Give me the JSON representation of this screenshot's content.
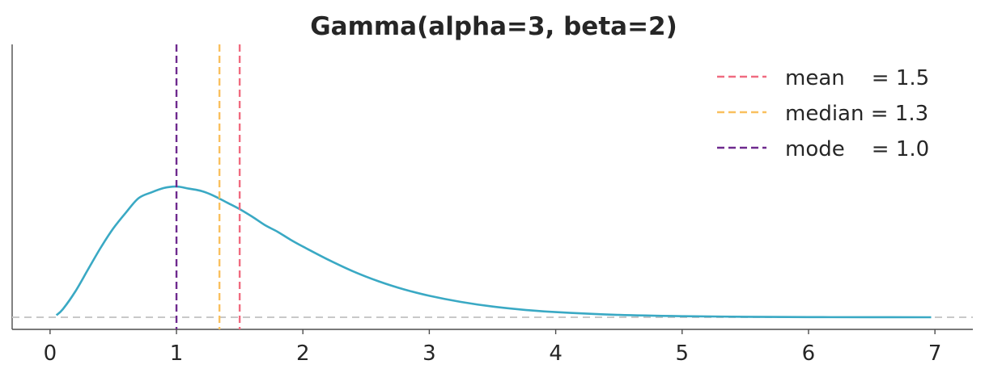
{
  "chart_data": {
    "type": "line",
    "title": "Gamma(alpha=3, beta=2)",
    "xlabel": "",
    "ylabel": "",
    "xlim": [
      -0.3,
      7.3
    ],
    "ylim": [
      -0.025,
      0.565
    ],
    "xticks": [
      0,
      1,
      2,
      3,
      4,
      5,
      6,
      7
    ],
    "yticks_shown": false,
    "grid": false,
    "baseline": {
      "y": 0,
      "style": "dashed",
      "color": "#c8c8c8"
    },
    "distribution": {
      "name": "Gamma",
      "alpha": 3,
      "beta": 2,
      "x_range": [
        0.05,
        6.97
      ]
    },
    "series": [
      {
        "color": "#3aa9c4",
        "x": [
          0.05,
          0.1,
          0.2,
          0.3,
          0.4,
          0.5,
          0.6,
          0.7,
          0.8,
          0.9,
          1.0,
          1.1,
          1.2,
          1.3,
          1.4,
          1.5,
          1.6,
          1.7,
          1.8,
          1.9,
          2.0,
          2.2,
          2.4,
          2.6,
          2.8,
          3.0,
          3.25,
          3.5,
          3.75,
          4.0,
          4.5,
          5.0,
          5.5,
          6.0,
          6.5,
          6.97
        ],
        "y": [
          0.0045,
          0.0164,
          0.0536,
          0.0988,
          0.1438,
          0.1839,
          0.2169,
          0.2466,
          0.2584,
          0.2676,
          0.2707,
          0.2663,
          0.2613,
          0.251,
          0.2375,
          0.224,
          0.2081,
          0.1908,
          0.1771,
          0.161,
          0.1465,
          0.1193,
          0.0948,
          0.0745,
          0.0578,
          0.0446,
          0.0318,
          0.0223,
          0.0155,
          0.0107,
          0.005,
          0.0023,
          0.001,
          0.0004,
          0.0002,
          0.0001
        ]
      }
    ],
    "vlines": [
      {
        "label": "mean",
        "value": 1.5,
        "color": "#f06b80",
        "legend": "mean    = 1.5"
      },
      {
        "label": "median",
        "value": 1.34,
        "color": "#f9c05e",
        "legend": "median = 1.3"
      },
      {
        "label": "mode",
        "value": 1.0,
        "color": "#6e2a8e",
        "legend": "mode    = 1.0"
      }
    ],
    "legend_position": "top-right"
  }
}
